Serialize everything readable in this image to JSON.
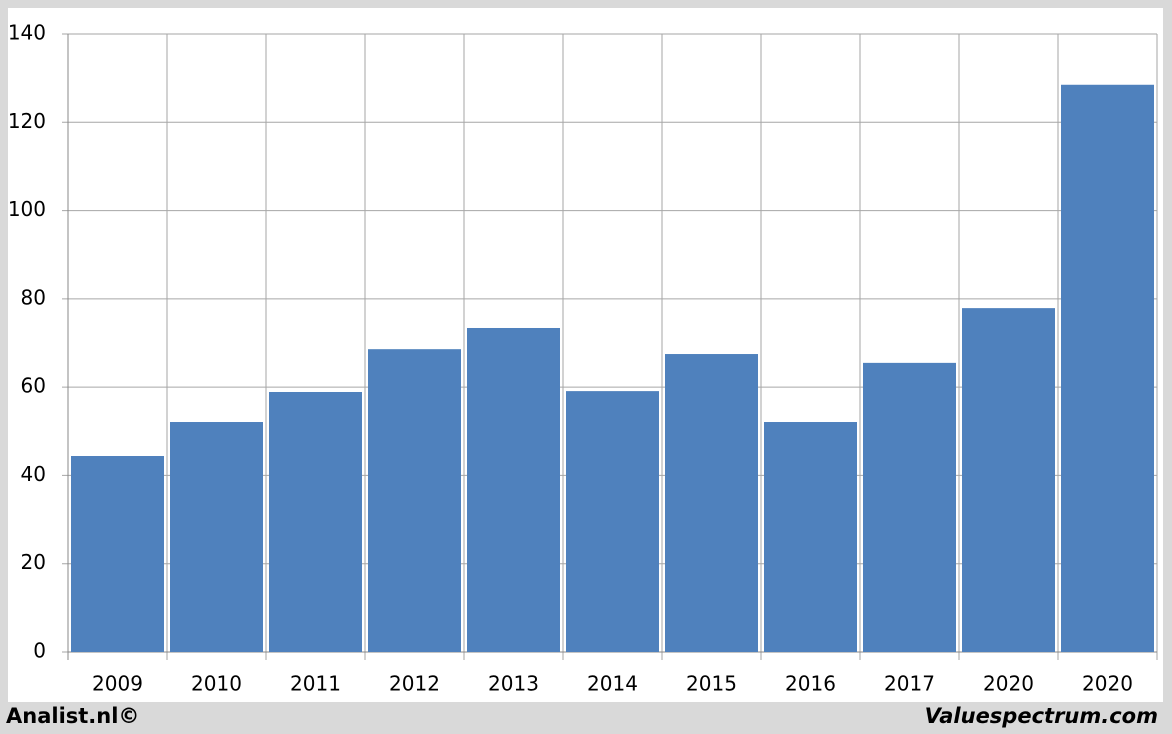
{
  "chart_data": {
    "type": "bar",
    "categories": [
      "2009",
      "2010",
      "2011",
      "2012",
      "2013",
      "2014",
      "2015",
      "2016",
      "2017",
      "2020",
      "2020"
    ],
    "values": [
      44.4,
      52.1,
      58.9,
      68.6,
      73.4,
      59.1,
      67.5,
      52.1,
      65.5,
      77.9,
      128.5
    ],
    "color": "#4f81bd",
    "ylim": [
      0,
      140
    ],
    "yticks": [
      0,
      20,
      40,
      60,
      80,
      100,
      120,
      140
    ],
    "grid": true
  },
  "footer": {
    "left": "Analist.nl©",
    "right": "Valuespectrum.com"
  }
}
